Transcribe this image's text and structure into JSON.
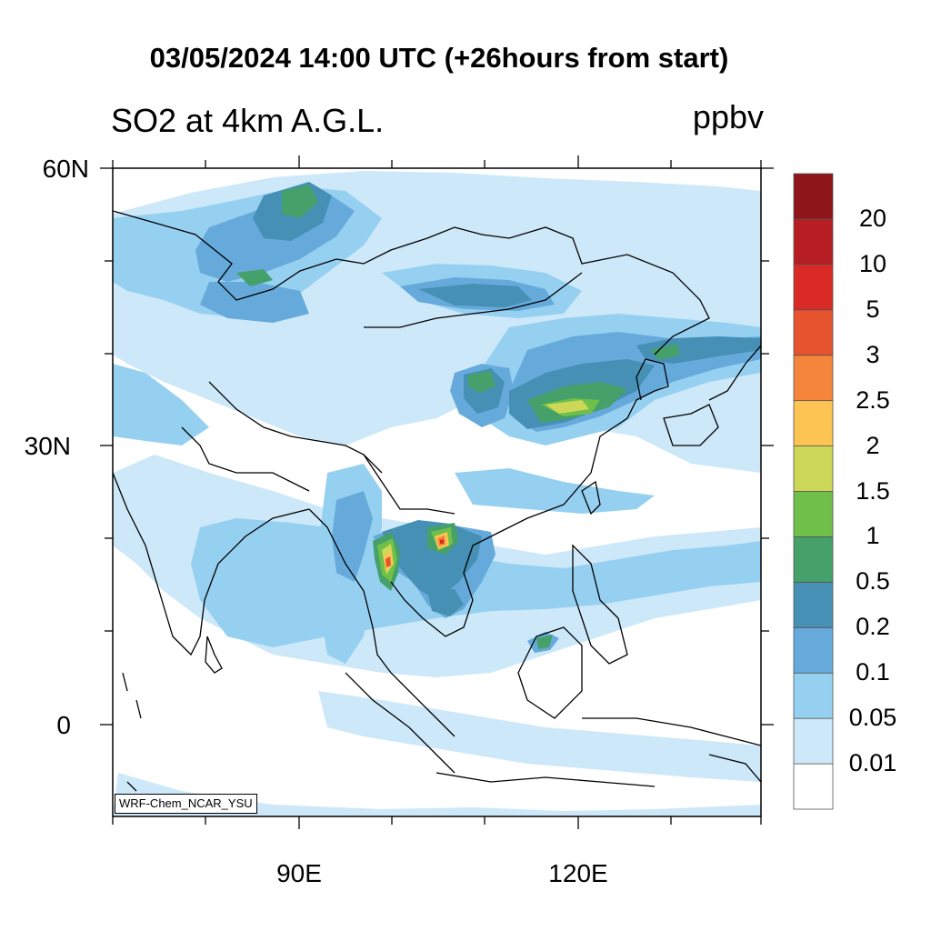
{
  "title": "03/05/2024 14:00 UTC (+26hours from start)",
  "subtitle": "SO2 at 4km A.G.L.",
  "units": "ppbv",
  "credit": "WRF-Chem_NCAR_YSU",
  "lat_labels": [
    "60N",
    "30N",
    "0"
  ],
  "lon_labels": [
    "90E",
    "120E"
  ],
  "colorbar": {
    "colors": [
      "#ffffff",
      "#cde8f9",
      "#96d0f1",
      "#66aadb",
      "#4590b4",
      "#45a06a",
      "#70bf4a",
      "#cdd858",
      "#fbc453",
      "#f4853a",
      "#e6532f",
      "#d92a26",
      "#b71e23",
      "#8e1519"
    ],
    "labels": [
      "0.01",
      "0.05",
      "0.1",
      "0.2",
      "0.5",
      "1",
      "1.5",
      "2",
      "2.5",
      "3",
      "5",
      "10",
      "20"
    ]
  }
}
